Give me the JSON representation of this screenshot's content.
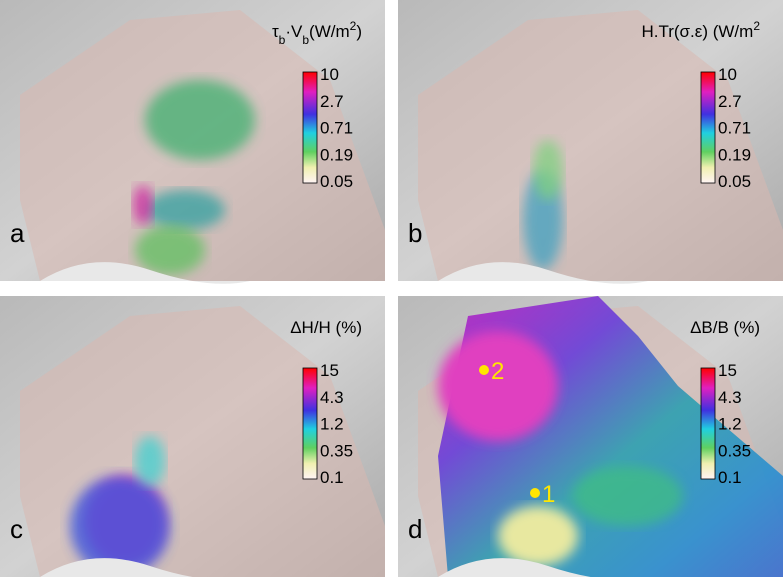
{
  "panels": [
    {
      "label": "a",
      "title_parts": [
        "τ",
        "b",
        "·V",
        "b",
        "(W/m",
        "2",
        ")"
      ],
      "colorbar_ticks": [
        10,
        2.7,
        0.71,
        0.19,
        0.05
      ]
    },
    {
      "label": "b",
      "title_parts": [
        "H.Tr(σ.ε) (W/m",
        "2"
      ],
      "colorbar_ticks": [
        10,
        2.7,
        0.71,
        0.19,
        0.05
      ]
    },
    {
      "label": "c",
      "title_parts": [
        "ΔH/H (%)"
      ],
      "colorbar_ticks": [
        15,
        4.3,
        1.2,
        0.35,
        0.1
      ]
    },
    {
      "label": "d",
      "title_parts": [
        "ΔB/B (%)"
      ],
      "colorbar_ticks": [
        15,
        4.3,
        1.2,
        0.35,
        0.1
      ],
      "markers": [
        {
          "label": "2"
        },
        {
          "label": "1"
        }
      ]
    }
  ]
}
